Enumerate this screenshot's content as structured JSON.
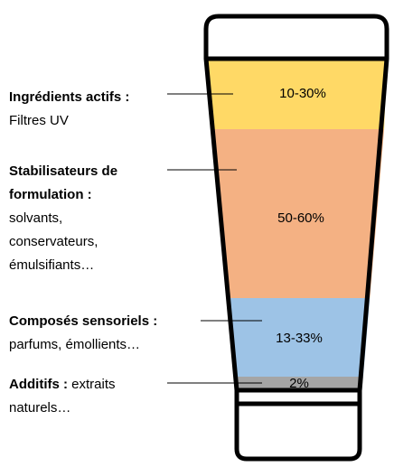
{
  "layers": [
    {
      "title": [
        "Ingrédients actifs :"
      ],
      "description": [
        "Filtres UV"
      ],
      "share": "10-30%"
    },
    {
      "title": [
        "Stabilisateurs de",
        "formulation :"
      ],
      "description": [
        "solvants,",
        "conservateurs,",
        "émulsifiants…"
      ],
      "share": "50-60%"
    },
    {
      "title": [
        "Composés sensoriels :"
      ],
      "description": [
        "parfums, émollients…"
      ],
      "share": "13-33%"
    },
    {
      "title": [
        "Additifs :"
      ],
      "description": [
        "extraits",
        "naturels…"
      ],
      "share": "2%"
    }
  ]
}
